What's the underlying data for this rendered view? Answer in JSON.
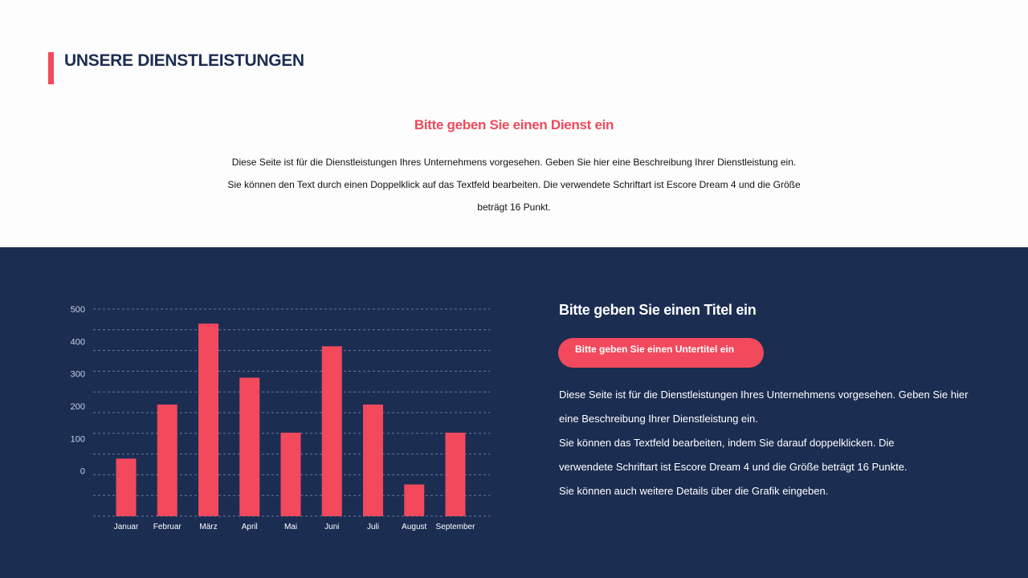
{
  "header": {
    "title": "UNSERE DIENSTLEISTUNGEN"
  },
  "intro": {
    "title": "Bitte geben Sie einen Dienst ein",
    "lines": [
      "Diese Seite ist für die Dienstleistungen Ihres Unternehmens vorgesehen. Geben Sie hier eine Beschreibung Ihrer Dienstleistung ein.",
      "Sie können den Text durch einen Doppelklick auf das Textfeld bearbeiten. Die verwendete Schriftart ist Escore Dream 4 und die Größe",
      "beträgt 16 Punkt."
    ]
  },
  "info": {
    "title": "Bitte geben Sie einen Titel ein",
    "subtitle": "Bitte geben Sie einen Untertitel ein",
    "lines": [
      "Diese Seite ist für die Dienstleistungen Ihres Unternehmens vorgesehen. Geben Sie hier",
      "eine Beschreibung Ihrer Dienstleistung ein.",
      "Sie können das Textfeld bearbeiten, indem Sie darauf doppelklicken. Die",
      "verwendete Schriftart ist Escore Dream 4 und die Größe beträgt 16 Punkte.",
      "Sie können auch weitere Details über die Grafik eingeben."
    ]
  },
  "colors": {
    "accent": "#f2495c",
    "navy": "#1c2d52",
    "grid": "#8a97b3",
    "tick": "#c9d1e3"
  },
  "chart_data": {
    "type": "bar",
    "categories": [
      "Januar",
      "Februar",
      "März",
      "April",
      "Mai",
      "Juni",
      "Juli",
      "August",
      "September"
    ],
    "values": [
      38,
      205,
      455,
      288,
      118,
      385,
      205,
      -42,
      118
    ],
    "yticks": [
      0,
      100,
      200,
      300,
      400,
      500
    ],
    "ylim": [
      -140,
      500
    ],
    "grid": "dashed horizontal",
    "legend": "none"
  }
}
